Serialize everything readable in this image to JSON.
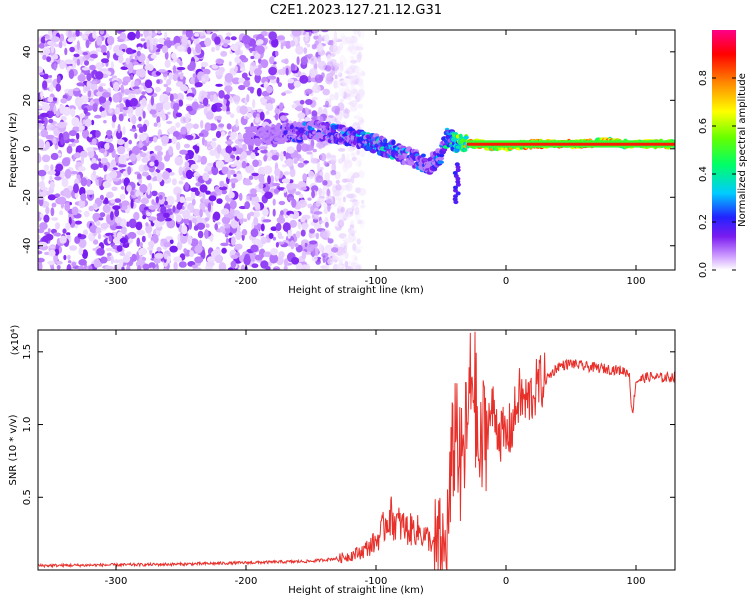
{
  "title": "C2E1.2023.127.21.12.G31",
  "chart_data": [
    {
      "type": "heatmap",
      "xlabel": "Height of straight line (km)",
      "ylabel": "Frequency (Hz)",
      "xlim": [
        -360,
        130
      ],
      "ylim": [
        -50,
        49
      ],
      "x_ticks": [
        "-300",
        "-200",
        "-100",
        "0",
        "100"
      ],
      "x_tick_values": [
        -300,
        -200,
        -100,
        0,
        100
      ],
      "y_ticks": [
        "-40",
        "-20",
        "0",
        "20",
        "40"
      ],
      "y_tick_values": [
        -40,
        -20,
        0,
        20,
        40
      ],
      "colorbar": {
        "label": "Normalized spectral amplitude",
        "range": [
          0,
          1
        ],
        "ticks": [
          "0.0",
          "0.2",
          "0.4",
          "0.6",
          "0.8"
        ],
        "tick_values": [
          0.0,
          0.2,
          0.4,
          0.6,
          0.8
        ],
        "colormap": [
          "#ffffff",
          "#cc99ff",
          "#7a1cf0",
          "#2222ff",
          "#00ccff",
          "#00ff66",
          "#66ff00",
          "#ffff00",
          "#ff8800",
          "#ff0000",
          "#ff0088"
        ]
      },
      "noise_region": {
        "x_start": -360,
        "x_end": -130,
        "freq_range": [
          -50,
          49
        ]
      },
      "signal_track": {
        "x": [
          -200,
          -180,
          -160,
          -150,
          -140,
          -120,
          -100,
          -90,
          -80,
          -70,
          -60,
          -50,
          -45,
          -40,
          -35,
          -30,
          -20,
          -10,
          0,
          20,
          40,
          60,
          80,
          90,
          100,
          130
        ],
        "freq": [
          5,
          6,
          7,
          8,
          7,
          5,
          2,
          0,
          -2,
          -4,
          -7,
          -3,
          5,
          3,
          2,
          2,
          2,
          1,
          1,
          2,
          2,
          2,
          3,
          2,
          2,
          2
        ],
        "amplitude": [
          0.2,
          0.3,
          0.35,
          0.4,
          0.4,
          0.45,
          0.5,
          0.5,
          0.45,
          0.4,
          0.35,
          0.45,
          0.5,
          0.6,
          0.7,
          0.8,
          0.85,
          0.85,
          0.85,
          0.9,
          0.9,
          0.9,
          0.85,
          0.8,
          0.85,
          0.85
        ]
      }
    },
    {
      "type": "line",
      "xlabel": "Height of straight line (km)",
      "ylabel": "SNR (10 * v/v)",
      "y_scale_label": "(x10⁴)",
      "xlim": [
        -360,
        130
      ],
      "ylim": [
        0,
        16500
      ],
      "x_ticks": [
        "-300",
        "-200",
        "-100",
        "0",
        "100"
      ],
      "x_tick_values": [
        -300,
        -200,
        -100,
        0,
        100
      ],
      "y_ticks": [
        "0.5",
        "1.0",
        "1.5"
      ],
      "y_tick_values": [
        5000,
        10000,
        15000
      ],
      "series": [
        {
          "color": "#e8302b",
          "x": [
            -360,
            -300,
            -250,
            -200,
            -150,
            -130,
            -120,
            -110,
            -100,
            -95,
            -90,
            -85,
            -80,
            -75,
            -70,
            -65,
            -60,
            -55,
            -52,
            -48,
            -45,
            -40,
            -38,
            -35,
            -33,
            -30,
            -28,
            -25,
            -22,
            -20,
            -18,
            -15,
            -10,
            -5,
            0,
            5,
            10,
            15,
            20,
            25,
            30,
            35,
            40,
            50,
            60,
            70,
            80,
            90,
            95,
            97,
            100,
            110,
            120,
            130
          ],
          "y": [
            200,
            250,
            300,
            400,
            500,
            700,
            900,
            1200,
            1800,
            2500,
            3500,
            3000,
            2800,
            2500,
            2600,
            2300,
            2000,
            1500,
            800,
            600,
            2500,
            9000,
            10800,
            6000,
            8000,
            9500,
            12000,
            14000,
            9000,
            7000,
            9000,
            10000,
            11000,
            9500,
            9000,
            10000,
            12000,
            11500,
            12000,
            12800,
            13000,
            13500,
            14000,
            14200,
            14000,
            13900,
            13800,
            13700,
            13500,
            10500,
            13000,
            13300,
            13200,
            13300
          ]
        }
      ]
    }
  ]
}
